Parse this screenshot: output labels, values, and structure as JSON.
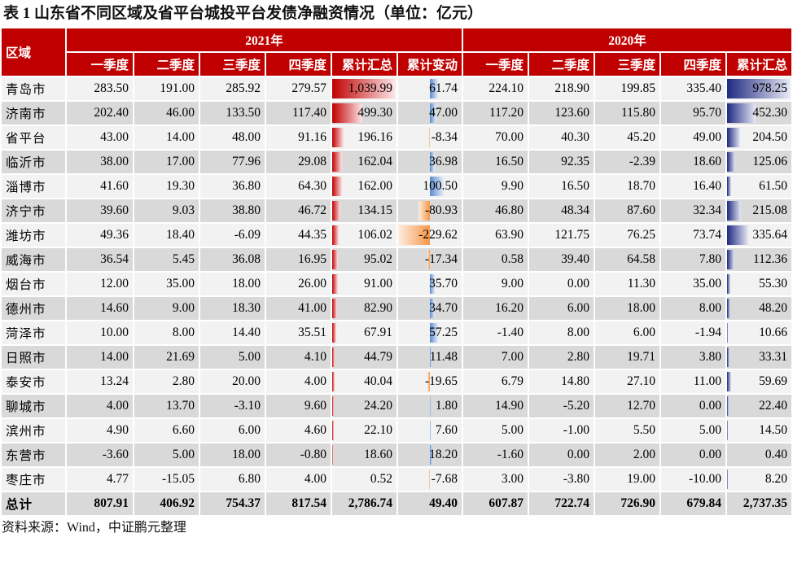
{
  "title": "表 1   山东省不同区域及省平台城投平台发债净融资情况（单位：亿元）",
  "header": {
    "region": "区域",
    "year2021": "2021年",
    "year2020": "2020年",
    "cols2021": [
      "一季度",
      "二季度",
      "三季度",
      "四季度",
      "累计汇总",
      "累计变动"
    ],
    "cols2020": [
      "一季度",
      "二季度",
      "三季度",
      "四季度",
      "累计汇总"
    ]
  },
  "colors": {
    "header_bg": "#c00000",
    "bar_2021_total": "#c00000",
    "bar_change_positive": "#5b8bd0",
    "bar_change_negative": "#f79646",
    "bar_2020_total": "#1f2a80",
    "row_light": "#f2f2f2",
    "row_dark": "#d9d9d9"
  },
  "rows": [
    {
      "name": "青岛市",
      "v": [
        "283.50",
        "191.00",
        "285.92",
        "279.57",
        "1,039.99",
        "61.74",
        "224.10",
        "218.90",
        "199.85",
        "335.40",
        "978.25"
      ]
    },
    {
      "name": "济南市",
      "v": [
        "202.40",
        "46.00",
        "133.50",
        "117.40",
        "499.30",
        "47.00",
        "117.20",
        "123.60",
        "115.80",
        "95.70",
        "452.30"
      ]
    },
    {
      "name": "省平台",
      "v": [
        "43.00",
        "14.00",
        "48.00",
        "91.16",
        "196.16",
        "-8.34",
        "70.00",
        "40.30",
        "45.20",
        "49.00",
        "204.50"
      ]
    },
    {
      "name": "临沂市",
      "v": [
        "38.00",
        "17.00",
        "77.96",
        "29.08",
        "162.04",
        "36.98",
        "16.50",
        "92.35",
        "-2.39",
        "18.60",
        "125.06"
      ]
    },
    {
      "name": "淄博市",
      "v": [
        "41.60",
        "19.30",
        "36.80",
        "64.30",
        "162.00",
        "100.50",
        "9.90",
        "16.50",
        "18.70",
        "16.40",
        "61.50"
      ]
    },
    {
      "name": "济宁市",
      "v": [
        "39.60",
        "9.03",
        "38.80",
        "46.72",
        "134.15",
        "-80.93",
        "46.80",
        "48.34",
        "87.60",
        "32.34",
        "215.08"
      ]
    },
    {
      "name": "潍坊市",
      "v": [
        "49.36",
        "18.40",
        "-6.09",
        "44.35",
        "106.02",
        "-229.62",
        "63.90",
        "121.75",
        "76.25",
        "73.74",
        "335.64"
      ]
    },
    {
      "name": "威海市",
      "v": [
        "36.54",
        "5.45",
        "36.08",
        "16.95",
        "95.02",
        "-17.34",
        "0.58",
        "39.40",
        "64.58",
        "7.80",
        "112.36"
      ]
    },
    {
      "name": "烟台市",
      "v": [
        "12.00",
        "35.00",
        "18.00",
        "26.00",
        "91.00",
        "35.70",
        "9.00",
        "0.00",
        "11.30",
        "35.00",
        "55.30"
      ]
    },
    {
      "name": "德州市",
      "v": [
        "14.60",
        "9.00",
        "18.30",
        "41.00",
        "82.90",
        "34.70",
        "16.20",
        "6.00",
        "18.00",
        "8.00",
        "48.20"
      ]
    },
    {
      "name": "菏泽市",
      "v": [
        "10.00",
        "8.00",
        "14.40",
        "35.51",
        "67.91",
        "57.25",
        "-1.40",
        "8.00",
        "6.00",
        "-1.94",
        "10.66"
      ]
    },
    {
      "name": "日照市",
      "v": [
        "14.00",
        "21.69",
        "5.00",
        "4.10",
        "44.79",
        "11.48",
        "7.00",
        "2.80",
        "19.71",
        "3.80",
        "33.31"
      ]
    },
    {
      "name": "泰安市",
      "v": [
        "13.24",
        "2.80",
        "20.00",
        "4.00",
        "40.04",
        "-19.65",
        "6.79",
        "14.80",
        "27.10",
        "11.00",
        "59.69"
      ]
    },
    {
      "name": "聊城市",
      "v": [
        "4.00",
        "13.70",
        "-3.10",
        "9.60",
        "24.20",
        "1.80",
        "14.90",
        "-5.20",
        "12.70",
        "0.00",
        "22.40"
      ]
    },
    {
      "name": "滨州市",
      "v": [
        "4.90",
        "6.60",
        "6.00",
        "4.60",
        "22.10",
        "7.60",
        "5.00",
        "-1.00",
        "5.50",
        "5.00",
        "14.50"
      ]
    },
    {
      "name": "东营市",
      "v": [
        "-3.60",
        "5.00",
        "18.00",
        "-0.80",
        "18.60",
        "18.20",
        "-1.60",
        "0.00",
        "2.00",
        "0.00",
        "0.40"
      ]
    },
    {
      "name": "枣庄市",
      "v": [
        "4.77",
        "-15.05",
        "6.80",
        "4.00",
        "0.52",
        "-7.68",
        "3.00",
        "-3.80",
        "19.00",
        "-10.00",
        "8.20"
      ]
    }
  ],
  "total": {
    "name": "总计",
    "v": [
      "807.91",
      "406.92",
      "754.37",
      "817.54",
      "2,786.74",
      "49.40",
      "607.87",
      "722.74",
      "726.90",
      "679.84",
      "2,737.35"
    ]
  },
  "source": "资料来源：Wind，中证鹏元整理"
}
